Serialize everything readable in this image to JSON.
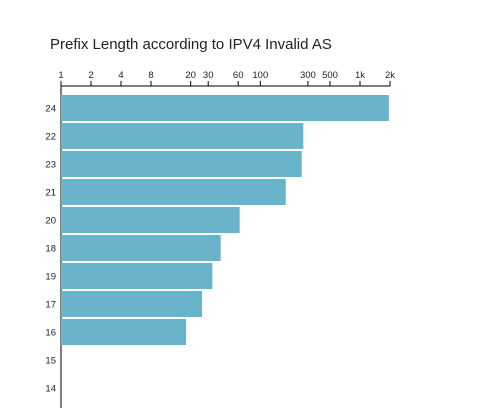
{
  "chart_data": {
    "type": "bar",
    "orientation": "horizontal",
    "title": "Prefix Length according to IPV4 Invalid AS",
    "xlabel": "",
    "ylabel": "",
    "x_scale": "log",
    "xlim": [
      1,
      2000
    ],
    "x_tick_values": [
      1,
      2,
      4,
      8,
      20,
      30,
      60,
      100,
      300,
      500,
      1000,
      2000
    ],
    "x_tick_labels": [
      "1",
      "2",
      "4",
      "8",
      "20",
      "30",
      "60",
      "100",
      "300",
      "500",
      "1k",
      "2k"
    ],
    "x_axis_position": "top",
    "grid": false,
    "bar_color": "#6ab4cb",
    "categories": [
      "24",
      "22",
      "23",
      "21",
      "20",
      "18",
      "19",
      "17",
      "16",
      "15",
      "14"
    ],
    "values": [
      1950,
      270,
      260,
      180,
      62,
      40,
      33,
      26,
      18,
      0,
      0
    ]
  }
}
